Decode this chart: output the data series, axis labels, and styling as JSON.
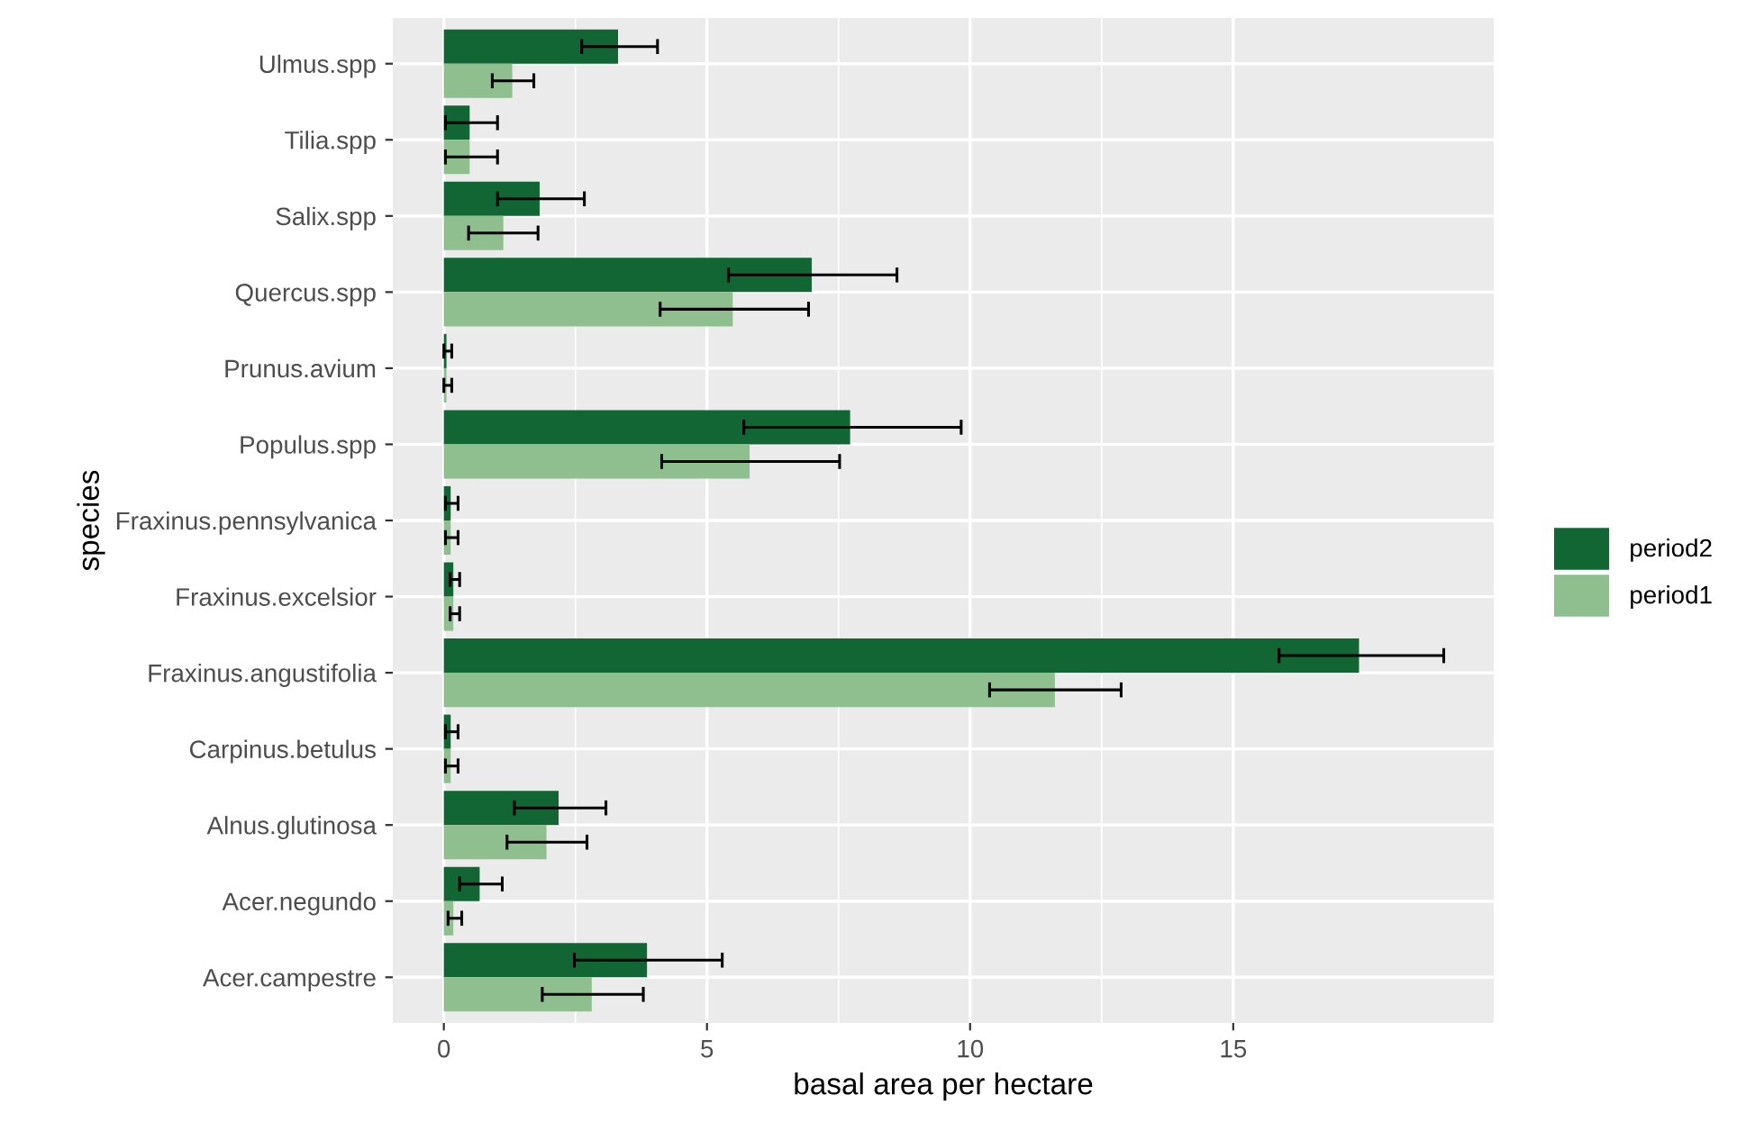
{
  "chart_data": {
    "type": "bar",
    "orientation": "horizontal",
    "xlabel": "basal area per hectare",
    "ylabel": "species",
    "categories": [
      "Ulmus.spp",
      "Tilia.spp",
      "Salix.spp",
      "Quercus.spp",
      "Prunus.avium",
      "Populus.spp",
      "Fraxinus.pennsylvanica",
      "Fraxinus.excelsior",
      "Fraxinus.angustifolia",
      "Carpinus.betulus",
      "Alnus.glutinosa",
      "Acer.negundo",
      "Acer.campestre"
    ],
    "series": [
      {
        "name": "period2",
        "color": "#116633",
        "values": [
          3.31,
          0.49,
          1.82,
          6.99,
          0.05,
          7.72,
          0.13,
          0.18,
          17.39,
          0.13,
          2.18,
          0.68,
          3.86
        ],
        "errors": [
          [
            2.62,
            4.06
          ],
          [
            0.03,
            1.02
          ],
          [
            1.02,
            2.67
          ],
          [
            5.41,
            8.61
          ],
          [
            0.0,
            0.15
          ],
          [
            5.7,
            9.83
          ],
          [
            0.03,
            0.27
          ],
          [
            0.12,
            0.3
          ],
          [
            15.87,
            19.0
          ],
          [
            0.03,
            0.27
          ],
          [
            1.34,
            3.08
          ],
          [
            0.3,
            1.11
          ],
          [
            2.48,
            5.29
          ]
        ]
      },
      {
        "name": "period1",
        "color": "#8fbf8f",
        "values": [
          1.3,
          0.49,
          1.13,
          5.49,
          0.05,
          5.81,
          0.13,
          0.18,
          11.61,
          0.13,
          1.95,
          0.18,
          2.81
        ],
        "errors": [
          [
            0.92,
            1.71
          ],
          [
            0.03,
            1.02
          ],
          [
            0.47,
            1.79
          ],
          [
            4.11,
            6.93
          ],
          [
            0.0,
            0.15
          ],
          [
            4.14,
            7.52
          ],
          [
            0.03,
            0.27
          ],
          [
            0.12,
            0.3
          ],
          [
            10.37,
            12.87
          ],
          [
            0.03,
            0.27
          ],
          [
            1.2,
            2.72
          ],
          [
            0.08,
            0.34
          ],
          [
            1.87,
            3.79
          ]
        ]
      }
    ],
    "xlim": [
      -0.97,
      19.95
    ],
    "xticks": [
      0,
      5,
      10,
      15
    ],
    "grid": true,
    "legend": "right"
  }
}
